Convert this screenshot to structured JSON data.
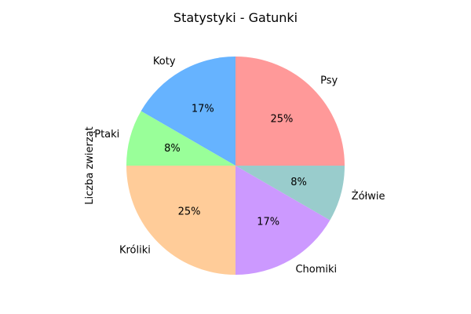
{
  "chart_data": {
    "type": "pie",
    "title": "Statystyki - Gatunki",
    "ylabel": "Liczba zwierząt",
    "slices": [
      {
        "label": "Psy",
        "value": 3,
        "pct_label": "25%",
        "color": "#ff9999"
      },
      {
        "label": "Koty",
        "value": 2,
        "pct_label": "17%",
        "color": "#66b3ff"
      },
      {
        "label": "Ptaki",
        "value": 1,
        "pct_label": "8%",
        "color": "#99ff99"
      },
      {
        "label": "Króliki",
        "value": 3,
        "pct_label": "25%",
        "color": "#ffcc99"
      },
      {
        "label": "Chomiki",
        "value": 2,
        "pct_label": "17%",
        "color": "#cc99ff"
      },
      {
        "label": "Żółwie",
        "value": 1,
        "pct_label": "8%",
        "color": "#99cccc"
      }
    ],
    "start_angle_deg": 0,
    "direction": "counterclockwise"
  }
}
